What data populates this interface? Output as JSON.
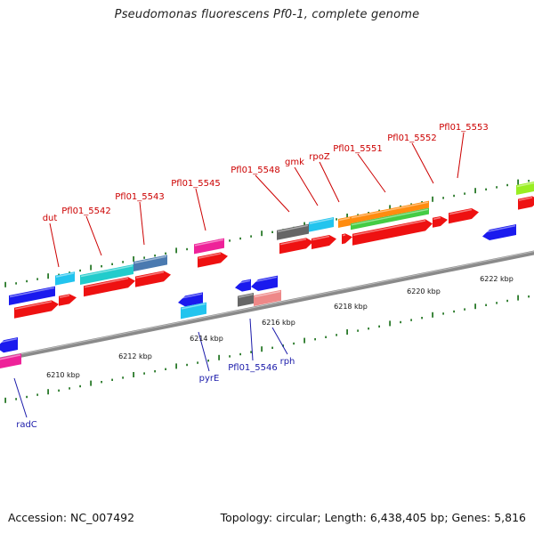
{
  "header": {
    "title": "Pseudomonas fluorescens Pf0-1, complete genome"
  },
  "footer": {
    "accession": "Accession: NC_007492",
    "summary": "Topology: circular; Length: 6,438,405 bp; Genes: 5,816"
  },
  "colors": {
    "backbone": "#8a8a8a",
    "tick": "#2a7a2a",
    "label_forward": "#cc0000",
    "label_reverse": "#1a1aaa",
    "red": "#ee1111",
    "blue": "#1a1aee",
    "cyan": "#22c4ee",
    "teal": "#22cccc",
    "steel": "#4a7ab0",
    "magenta": "#ee2299",
    "gray": "#666666",
    "pink": "#ee8888",
    "orange": "#ff8c10",
    "green": "#44cc44",
    "lime": "#99ee22"
  },
  "scale_labels": [
    "6210 kbp",
    "6212 kbp",
    "6214 kbp",
    "6216 kbp",
    "6218 kbp",
    "6220 kbp",
    "6222 kbp"
  ],
  "gene_labels_forward": [
    "dut",
    "Pfl01_5542",
    "Pfl01_5543",
    "Pfl01_5545",
    "Pfl01_5548",
    "gmk",
    "rpoZ",
    "Pfl01_5551",
    "Pfl01_5552",
    "Pfl01_5553"
  ],
  "gene_labels_reverse": [
    "radC",
    "pyrE",
    "Pfl01_5546",
    "rph"
  ]
}
